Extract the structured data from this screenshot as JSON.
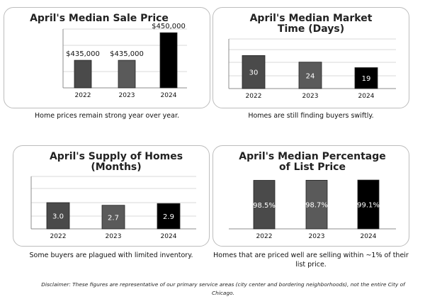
{
  "chart_data": [
    {
      "type": "bar",
      "title": "April's Median Sale Price",
      "categories": [
        "2022",
        "2023",
        "2024"
      ],
      "values": [
        435000,
        435000,
        450000
      ],
      "data_labels": [
        "$435,000",
        "$435,000",
        "$450,000"
      ],
      "label_position": "outside",
      "ylim": [
        420000,
        452000
      ],
      "grid": true,
      "colors": [
        "#4a4a4a",
        "#5a5a5a",
        "#000000"
      ],
      "caption": "Home prices remain strong year over year."
    },
    {
      "type": "bar",
      "title": "April's Median Market Time (Days)",
      "categories": [
        "2022",
        "2023",
        "2024"
      ],
      "values": [
        30,
        24,
        19
      ],
      "data_labels": [
        "30",
        "24",
        "19"
      ],
      "label_position": "inside",
      "ylim": [
        0,
        45
      ],
      "grid": true,
      "colors": [
        "#4a4a4a",
        "#5a5a5a",
        "#000000"
      ],
      "caption": "Homes are still finding buyers swiftly."
    },
    {
      "type": "bar",
      "title": "April's Supply of Homes (Months)",
      "categories": [
        "2022",
        "2023",
        "2024"
      ],
      "values": [
        3.0,
        2.7,
        2.9
      ],
      "data_labels": [
        "3.0",
        "2.7",
        "2.9"
      ],
      "label_position": "inside",
      "ylim": [
        0,
        6
      ],
      "grid": true,
      "colors": [
        "#4a4a4a",
        "#5a5a5a",
        "#000000"
      ],
      "caption": "Some buyers are plagued with limited inventory."
    },
    {
      "type": "bar",
      "title": "April's Median Percentage of List Price",
      "categories": [
        "2022",
        "2023",
        "2024"
      ],
      "values": [
        98.5,
        98.7,
        99.1
      ],
      "data_labels": [
        "98.5%",
        "98.7%",
        "99.1%"
      ],
      "label_position": "inside",
      "ylim": [
        0,
        105
      ],
      "grid": false,
      "colors": [
        "#4a4a4a",
        "#5a5a5a",
        "#000000"
      ],
      "caption": "Homes that are priced well are selling within ~1% of their list price."
    }
  ],
  "disclaimer": "Disclaimer: These figures are representative of our primary service areas (city center and bordering neighborhoods), not the entire City of Chicago."
}
